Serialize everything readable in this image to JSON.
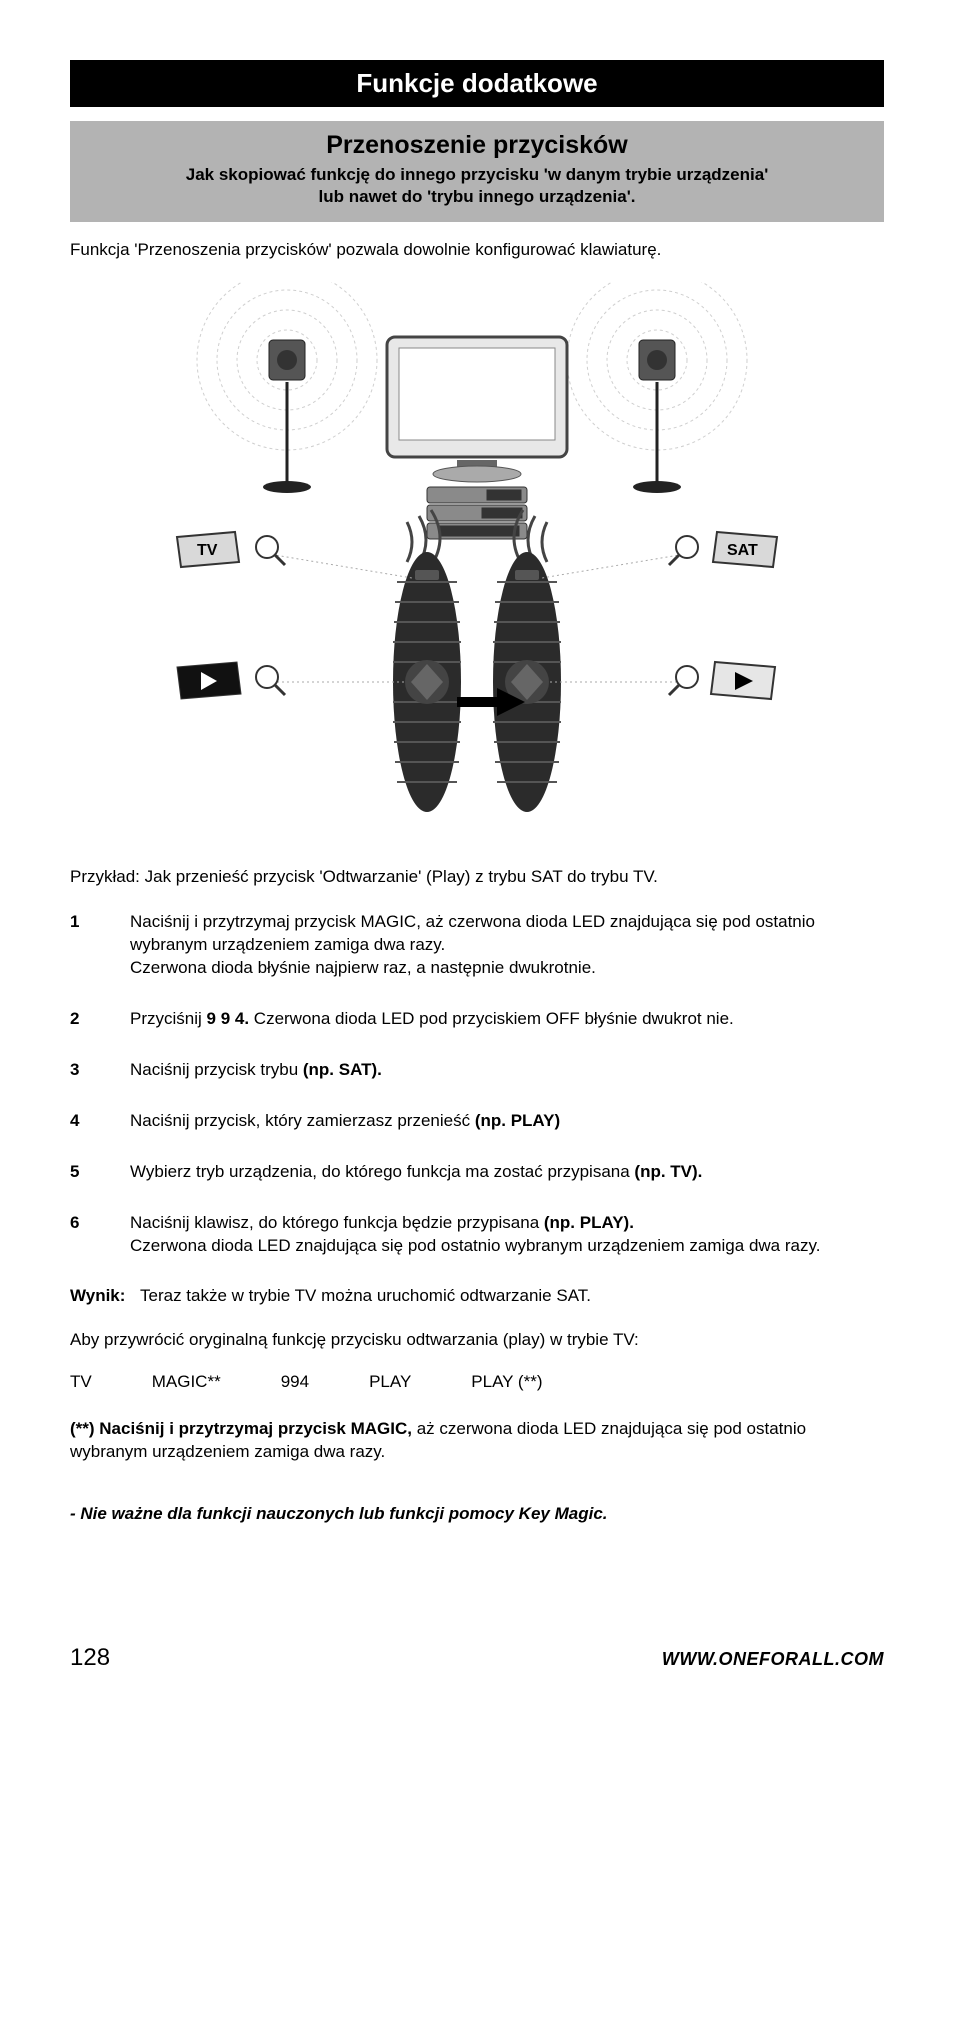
{
  "header": {
    "title": "Funkcje dodatkowe",
    "sub_title": "Przenoszenie przycisków",
    "sub_desc_line1": "Jak skopiować funkcję do innego przycisku 'w danym trybie urządzenia'",
    "sub_desc_line2": "lub nawet do 'trybu innego urządzenia'."
  },
  "intro": "Funkcja 'Przenoszenia przycisków' pozwala dowolnie konfigurować klawiaturę.",
  "diagram": {
    "tv_label": "TV",
    "sat_label": "SAT",
    "play_glyph": "▶",
    "magnifier_glyph": "search",
    "colors": {
      "outline": "#5a5a5a",
      "light_gray": "#cccccc",
      "dark_gray": "#3a3a3a",
      "black": "#000000",
      "white": "#ffffff",
      "dash": "#bfbfbf"
    }
  },
  "example": "Przykład: Jak przenieść przycisk 'Odtwarzanie' (Play) z trybu SAT do trybu TV.",
  "steps": [
    {
      "num": "1",
      "text_pre": "Naciśnij i przytrzymaj przycisk MAGIC, aż czerwona dioda LED znajdująca się pod ostatnio wybranym urządzeniem zamiga dwa razy.\nCzerwona dioda błyśnie najpierw raz, a następnie dwukrotnie.",
      "bold": ""
    },
    {
      "num": "2",
      "text_pre": "Przyciśnij ",
      "bold": "9 9 4.",
      "text_post": " Czerwona dioda LED pod przyciskiem OFF błyśnie dwukrot nie."
    },
    {
      "num": "3",
      "text_pre": "Naciśnij przycisk trybu ",
      "bold": "(np. SAT).",
      "text_post": ""
    },
    {
      "num": "4",
      "text_pre": "Naciśnij przycisk, który zamierzasz przenieść ",
      "bold": "(np. PLAY)",
      "text_post": ""
    },
    {
      "num": "5",
      "text_pre": "Wybierz tryb urządzenia, do którego funkcja ma zostać przypisana ",
      "bold": "(np. TV).",
      "text_post": ""
    },
    {
      "num": "6",
      "text_pre": "Naciśnij klawisz, do którego funkcja będzie przypisana ",
      "bold": "(np. PLAY).",
      "text_post": "\nCzerwona dioda LED znajdująca się pod ostatnio wybranym urządzeniem zamiga dwa razy."
    }
  ],
  "result": {
    "label": "Wynik:",
    "text": "Teraz także w trybie TV można uruchomić odtwarzanie SAT."
  },
  "restore_line": "Aby przywrócić oryginalną funkcję przycisku odtwarzania (play) w trybie TV:",
  "code_row": [
    "TV",
    "MAGIC**",
    "994",
    "PLAY",
    "PLAY (**)"
  ],
  "note": {
    "bold": "(**)  Naciśnij i przytrzymaj przycisk MAGIC,",
    "rest": " aż czerwona dioda LED znajdująca się pod ostatnio wybranym urządzeniem zamiga dwa razy."
  },
  "italic_note": "- Nie ważne dla funkcji nauczonych lub funkcji pomocy Key Magic.",
  "footer": {
    "page": "128",
    "url": "WWW.ONEFORALL.COM"
  }
}
